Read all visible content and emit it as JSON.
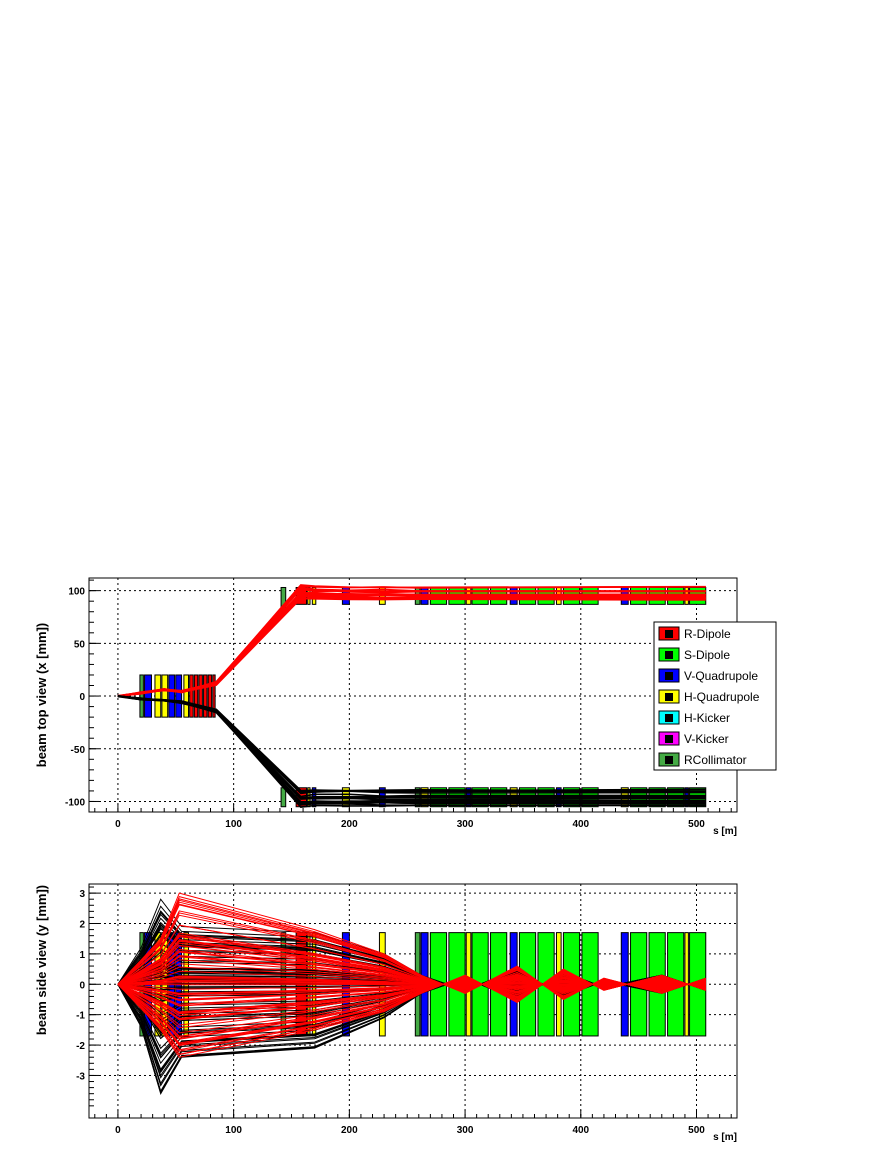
{
  "chart_data": [
    {
      "type": "line",
      "panel": "top",
      "ylabel": "beam top view (x [mm])",
      "xlabel": "s [m]",
      "xlim": [
        -25,
        535
      ],
      "ylim": [
        -110,
        112
      ],
      "x_ticks": [
        0,
        100,
        200,
        300,
        400,
        500
      ],
      "y_ticks": [
        -100,
        -50,
        0,
        50,
        100
      ],
      "grid": true,
      "legend_position": "right",
      "legend": [
        {
          "label": "R-Dipole",
          "color": "#ff0000"
        },
        {
          "label": "S-Dipole",
          "color": "#00ff00"
        },
        {
          "label": "V-Quadrupole",
          "color": "#0000ff"
        },
        {
          "label": "H-Quadrupole",
          "color": "#ffff00"
        },
        {
          "label": "H-Kicker",
          "color": "#00ffff"
        },
        {
          "label": "V-Kicker",
          "color": "#ff00ff"
        },
        {
          "label": "RCollimator",
          "color": "#44aa44"
        }
      ],
      "elements": [
        {
          "kind": "RCollimator",
          "s0": 19,
          "s1": 22,
          "ylo": -20,
          "yhi": 20
        },
        {
          "kind": "V-Quadrupole",
          "s0": 23,
          "s1": 29,
          "ylo": -20,
          "yhi": 20
        },
        {
          "kind": "H-Quadrupole",
          "s0": 32,
          "s1": 37,
          "ylo": -20,
          "yhi": 20
        },
        {
          "kind": "H-Quadrupole",
          "s0": 38,
          "s1": 43,
          "ylo": -20,
          "yhi": 20
        },
        {
          "kind": "V-Quadrupole",
          "s0": 44,
          "s1": 49,
          "ylo": -20,
          "yhi": 20
        },
        {
          "kind": "V-Quadrupole",
          "s0": 50,
          "s1": 55,
          "ylo": -20,
          "yhi": 20
        },
        {
          "kind": "H-Quadrupole",
          "s0": 57,
          "s1": 61,
          "ylo": -20,
          "yhi": 20
        },
        {
          "kind": "R-Dipole",
          "s0": 62,
          "s1": 65,
          "ylo": -20,
          "yhi": 20
        },
        {
          "kind": "R-Dipole",
          "s0": 66,
          "s1": 69,
          "ylo": -20,
          "yhi": 20
        },
        {
          "kind": "R-Dipole",
          "s0": 70,
          "s1": 73,
          "ylo": -20,
          "yhi": 20
        },
        {
          "kind": "R-Dipole",
          "s0": 74,
          "s1": 77,
          "ylo": -20,
          "yhi": 20
        },
        {
          "kind": "R-Dipole",
          "s0": 78,
          "s1": 81,
          "ylo": -20,
          "yhi": 20
        },
        {
          "kind": "R-Dipole",
          "s0": 82,
          "s1": 84,
          "ylo": -20,
          "yhi": 20
        },
        {
          "kind": "RCollimator",
          "s0": 141,
          "s1": 145,
          "ylo": 80,
          "yhi": 103
        },
        {
          "kind": "R-Dipole",
          "s0": 154,
          "s1": 163,
          "ylo": 87,
          "yhi": 103
        },
        {
          "kind": "H-Quadrupole",
          "s0": 164,
          "s1": 166,
          "ylo": 87,
          "yhi": 103
        },
        {
          "kind": "H-Quadrupole",
          "s0": 168,
          "s1": 171,
          "ylo": 87,
          "yhi": 103
        },
        {
          "kind": "V-Quadrupole",
          "s0": 194,
          "s1": 200,
          "ylo": 87,
          "yhi": 103
        },
        {
          "kind": "H-Quadrupole",
          "s0": 226,
          "s1": 231,
          "ylo": 87,
          "yhi": 103
        },
        {
          "kind": "RCollimator",
          "s0": 257,
          "s1": 261,
          "ylo": 87,
          "yhi": 103
        },
        {
          "kind": "V-Quadrupole",
          "s0": 262,
          "s1": 268,
          "ylo": 87,
          "yhi": 103
        },
        {
          "kind": "S-Dipole",
          "s0": 270,
          "s1": 284,
          "ylo": 87,
          "yhi": 103
        },
        {
          "kind": "S-Dipole",
          "s0": 286,
          "s1": 300,
          "ylo": 87,
          "yhi": 103
        },
        {
          "kind": "H-Quadrupole",
          "s0": 301,
          "s1": 305,
          "ylo": 87,
          "yhi": 103
        },
        {
          "kind": "S-Dipole",
          "s0": 306,
          "s1": 320,
          "ylo": 87,
          "yhi": 103
        },
        {
          "kind": "S-Dipole",
          "s0": 322,
          "s1": 336,
          "ylo": 87,
          "yhi": 103
        },
        {
          "kind": "V-Quadrupole",
          "s0": 339,
          "s1": 345,
          "ylo": 87,
          "yhi": 103
        },
        {
          "kind": "S-Dipole",
          "s0": 347,
          "s1": 361,
          "ylo": 87,
          "yhi": 103
        },
        {
          "kind": "S-Dipole",
          "s0": 363,
          "s1": 377,
          "ylo": 87,
          "yhi": 103
        },
        {
          "kind": "H-Quadrupole",
          "s0": 379,
          "s1": 383,
          "ylo": 87,
          "yhi": 103
        },
        {
          "kind": "S-Dipole",
          "s0": 385,
          "s1": 399,
          "ylo": 87,
          "yhi": 103
        },
        {
          "kind": "S-Dipole",
          "s0": 401,
          "s1": 415,
          "ylo": 87,
          "yhi": 103
        },
        {
          "kind": "V-Quadrupole",
          "s0": 435,
          "s1": 441,
          "ylo": 87,
          "yhi": 103
        },
        {
          "kind": "S-Dipole",
          "s0": 443,
          "s1": 457,
          "ylo": 87,
          "yhi": 103
        },
        {
          "kind": "S-Dipole",
          "s0": 459,
          "s1": 473,
          "ylo": 87,
          "yhi": 103
        },
        {
          "kind": "S-Dipole",
          "s0": 475,
          "s1": 489,
          "ylo": 87,
          "yhi": 103
        },
        {
          "kind": "H-Quadrupole",
          "s0": 490,
          "s1": 493,
          "ylo": 87,
          "yhi": 103
        },
        {
          "kind": "S-Dipole",
          "s0": 494,
          "s1": 508,
          "ylo": 87,
          "yhi": 103
        },
        {
          "kind": "RCollimator",
          "s0": 141,
          "s1": 145,
          "ylo": -105,
          "yhi": -87
        },
        {
          "kind": "R-Dipole",
          "s0": 154,
          "s1": 163,
          "ylo": -105,
          "yhi": -87
        },
        {
          "kind": "H-Quadrupole",
          "s0": 164,
          "s1": 166,
          "ylo": -105,
          "yhi": -87
        },
        {
          "kind": "V-Quadrupole",
          "s0": 168,
          "s1": 171,
          "ylo": -105,
          "yhi": -87
        },
        {
          "kind": "H-Quadrupole",
          "s0": 194,
          "s1": 200,
          "ylo": -105,
          "yhi": -87
        },
        {
          "kind": "V-Quadrupole",
          "s0": 226,
          "s1": 231,
          "ylo": -105,
          "yhi": -87
        },
        {
          "kind": "RCollimator",
          "s0": 257,
          "s1": 261,
          "ylo": -105,
          "yhi": -87
        },
        {
          "kind": "H-Quadrupole",
          "s0": 262,
          "s1": 268,
          "ylo": -105,
          "yhi": -87
        },
        {
          "kind": "S-Dipole",
          "s0": 270,
          "s1": 284,
          "ylo": -105,
          "yhi": -87
        },
        {
          "kind": "S-Dipole",
          "s0": 286,
          "s1": 300,
          "ylo": -105,
          "yhi": -87
        },
        {
          "kind": "V-Quadrupole",
          "s0": 301,
          "s1": 305,
          "ylo": -105,
          "yhi": -87
        },
        {
          "kind": "S-Dipole",
          "s0": 306,
          "s1": 320,
          "ylo": -105,
          "yhi": -87
        },
        {
          "kind": "S-Dipole",
          "s0": 322,
          "s1": 336,
          "ylo": -105,
          "yhi": -87
        },
        {
          "kind": "H-Quadrupole",
          "s0": 339,
          "s1": 345,
          "ylo": -105,
          "yhi": -87
        },
        {
          "kind": "S-Dipole",
          "s0": 347,
          "s1": 361,
          "ylo": -105,
          "yhi": -87
        },
        {
          "kind": "S-Dipole",
          "s0": 363,
          "s1": 377,
          "ylo": -105,
          "yhi": -87
        },
        {
          "kind": "V-Quadrupole",
          "s0": 379,
          "s1": 383,
          "ylo": -105,
          "yhi": -87
        },
        {
          "kind": "S-Dipole",
          "s0": 385,
          "s1": 399,
          "ylo": -105,
          "yhi": -87
        },
        {
          "kind": "S-Dipole",
          "s0": 401,
          "s1": 415,
          "ylo": -105,
          "yhi": -87
        },
        {
          "kind": "H-Quadrupole",
          "s0": 435,
          "s1": 441,
          "ylo": -105,
          "yhi": -87
        },
        {
          "kind": "S-Dipole",
          "s0": 443,
          "s1": 457,
          "ylo": -105,
          "yhi": -87
        },
        {
          "kind": "S-Dipole",
          "s0": 459,
          "s1": 473,
          "ylo": -105,
          "yhi": -87
        },
        {
          "kind": "S-Dipole",
          "s0": 475,
          "s1": 489,
          "ylo": -105,
          "yhi": -87
        },
        {
          "kind": "V-Quadrupole",
          "s0": 490,
          "s1": 493,
          "ylo": -105,
          "yhi": -87
        },
        {
          "kind": "S-Dipole",
          "s0": 494,
          "s1": 508,
          "ylo": -105,
          "yhi": -87
        }
      ],
      "series": [
        {
          "color": "#ff0000",
          "x": [
            0,
            20,
            40,
            55,
            85,
            158,
            170,
            200,
            230,
            260,
            508
          ],
          "y": [
            0,
            3,
            6,
            4,
            12,
            98,
            97,
            96,
            96,
            96,
            96
          ]
        },
        {
          "color": "#000000",
          "x": [
            0,
            20,
            40,
            55,
            85,
            158,
            170,
            200,
            230,
            260,
            508
          ],
          "y": [
            0,
            -3,
            -4,
            -6,
            -14,
            -97,
            -96,
            -96,
            -96,
            -96,
            -96
          ]
        }
      ]
    },
    {
      "type": "line",
      "panel": "bottom",
      "ylabel": "beam side view (y [mm])",
      "xlabel": "s [m]",
      "xlim": [
        -25,
        535
      ],
      "ylim": [
        -4.4,
        3.3
      ],
      "x_ticks": [
        0,
        100,
        200,
        300,
        400,
        500
      ],
      "y_ticks": [
        -3,
        -2,
        -1,
        0,
        1,
        2,
        3
      ],
      "grid": true,
      "elements": [
        {
          "kind": "RCollimator",
          "s0": 19,
          "s1": 22,
          "ylo": -1.7,
          "yhi": 1.7
        },
        {
          "kind": "V-Quadrupole",
          "s0": 23,
          "s1": 29,
          "ylo": -1.7,
          "yhi": 1.7
        },
        {
          "kind": "H-Quadrupole",
          "s0": 32,
          "s1": 37,
          "ylo": -1.7,
          "yhi": 1.7
        },
        {
          "kind": "H-Quadrupole",
          "s0": 38,
          "s1": 43,
          "ylo": -1.7,
          "yhi": 1.7
        },
        {
          "kind": "V-Quadrupole",
          "s0": 44,
          "s1": 49,
          "ylo": -1.7,
          "yhi": 1.7
        },
        {
          "kind": "V-Quadrupole",
          "s0": 50,
          "s1": 55,
          "ylo": -1.7,
          "yhi": 1.7
        },
        {
          "kind": "H-Quadrupole",
          "s0": 57,
          "s1": 61,
          "ylo": -1.7,
          "yhi": 1.7
        },
        {
          "kind": "RCollimator",
          "s0": 141,
          "s1": 145,
          "ylo": -1.7,
          "yhi": 1.7
        },
        {
          "kind": "R-Dipole",
          "s0": 154,
          "s1": 163,
          "ylo": -1.7,
          "yhi": 1.7
        },
        {
          "kind": "H-Quadrupole",
          "s0": 164,
          "s1": 166,
          "ylo": -1.7,
          "yhi": 1.7
        },
        {
          "kind": "H-Quadrupole",
          "s0": 168,
          "s1": 171,
          "ylo": -1.7,
          "yhi": 1.7
        },
        {
          "kind": "V-Quadrupole",
          "s0": 194,
          "s1": 200,
          "ylo": -1.7,
          "yhi": 1.7
        },
        {
          "kind": "H-Quadrupole",
          "s0": 226,
          "s1": 231,
          "ylo": -1.7,
          "yhi": 1.7
        },
        {
          "kind": "RCollimator",
          "s0": 257,
          "s1": 261,
          "ylo": -1.7,
          "yhi": 1.7
        },
        {
          "kind": "V-Quadrupole",
          "s0": 262,
          "s1": 268,
          "ylo": -1.7,
          "yhi": 1.7
        },
        {
          "kind": "S-Dipole",
          "s0": 270,
          "s1": 284,
          "ylo": -1.7,
          "yhi": 1.7
        },
        {
          "kind": "S-Dipole",
          "s0": 286,
          "s1": 300,
          "ylo": -1.7,
          "yhi": 1.7
        },
        {
          "kind": "H-Quadrupole",
          "s0": 301,
          "s1": 305,
          "ylo": -1.7,
          "yhi": 1.7
        },
        {
          "kind": "S-Dipole",
          "s0": 306,
          "s1": 320,
          "ylo": -1.7,
          "yhi": 1.7
        },
        {
          "kind": "S-Dipole",
          "s0": 322,
          "s1": 336,
          "ylo": -1.7,
          "yhi": 1.7
        },
        {
          "kind": "V-Quadrupole",
          "s0": 339,
          "s1": 345,
          "ylo": -1.7,
          "yhi": 1.7
        },
        {
          "kind": "S-Dipole",
          "s0": 347,
          "s1": 361,
          "ylo": -1.7,
          "yhi": 1.7
        },
        {
          "kind": "S-Dipole",
          "s0": 363,
          "s1": 377,
          "ylo": -1.7,
          "yhi": 1.7
        },
        {
          "kind": "H-Quadrupole",
          "s0": 379,
          "s1": 383,
          "ylo": -1.7,
          "yhi": 1.7
        },
        {
          "kind": "S-Dipole",
          "s0": 385,
          "s1": 399,
          "ylo": -1.7,
          "yhi": 1.7
        },
        {
          "kind": "S-Dipole",
          "s0": 401,
          "s1": 415,
          "ylo": -1.7,
          "yhi": 1.7
        },
        {
          "kind": "V-Quadrupole",
          "s0": 435,
          "s1": 441,
          "ylo": -1.7,
          "yhi": 1.7
        },
        {
          "kind": "S-Dipole",
          "s0": 443,
          "s1": 457,
          "ylo": -1.7,
          "yhi": 1.7
        },
        {
          "kind": "S-Dipole",
          "s0": 459,
          "s1": 473,
          "ylo": -1.7,
          "yhi": 1.7
        },
        {
          "kind": "S-Dipole",
          "s0": 475,
          "s1": 489,
          "ylo": -1.7,
          "yhi": 1.7
        },
        {
          "kind": "H-Quadrupole",
          "s0": 490,
          "s1": 493,
          "ylo": -1.7,
          "yhi": 1.7
        },
        {
          "kind": "S-Dipole",
          "s0": 494,
          "s1": 508,
          "ylo": -1.7,
          "yhi": 1.7
        }
      ],
      "series": [
        {
          "color": "#000000",
          "x": [
            0,
            20,
            37,
            55,
            170,
            230,
            262,
            300,
            345,
            385,
            420,
            470,
            508
          ],
          "y": [
            0,
            -1.4,
            -3.6,
            -2.4,
            -2.1,
            -1.1,
            -0.3,
            0.2,
            -0.5,
            0.4,
            -0.1,
            0.3,
            -0.2
          ]
        },
        {
          "color": "#000000",
          "x": [
            0,
            20,
            37,
            55,
            170,
            230,
            262,
            300,
            345,
            385,
            420,
            470,
            508
          ],
          "y": [
            0,
            1.2,
            2.8,
            1.9,
            1.7,
            1.0,
            0.3,
            -0.2,
            0.5,
            -0.4,
            0.1,
            -0.3,
            0.2
          ]
        },
        {
          "color": "#ff0000",
          "x": [
            0,
            20,
            37,
            53,
            170,
            230,
            262,
            300,
            345,
            385,
            420,
            470,
            508
          ],
          "y": [
            0,
            0.8,
            1.5,
            3.0,
            1.8,
            1.0,
            0.3,
            -0.3,
            0.6,
            -0.5,
            0.2,
            -0.3,
            0.2
          ]
        },
        {
          "color": "#ff0000",
          "x": [
            0,
            20,
            37,
            53,
            170,
            230,
            262,
            300,
            345,
            385,
            420,
            470,
            508
          ],
          "y": [
            0,
            -0.8,
            -1.5,
            -2.4,
            -1.5,
            -0.9,
            -0.3,
            0.3,
            -0.6,
            0.5,
            -0.2,
            0.3,
            -0.2
          ]
        }
      ]
    }
  ]
}
